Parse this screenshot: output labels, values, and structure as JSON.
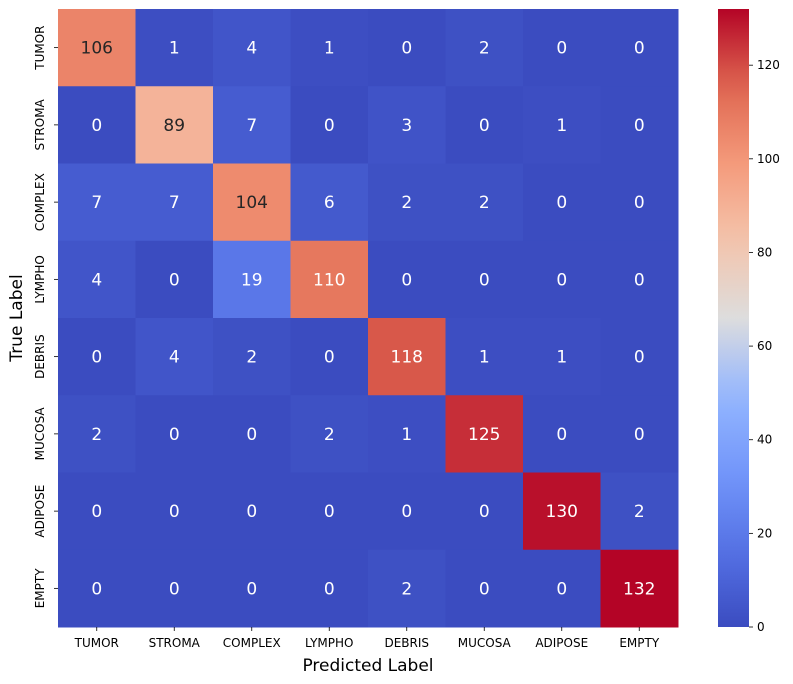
{
  "chart_data": {
    "type": "heatmap",
    "title": "",
    "xlabel": "Predicted Label",
    "ylabel": "True Label",
    "x_categories": [
      "TUMOR",
      "STROMA",
      "COMPLEX",
      "LYMPHO",
      "DEBRIS",
      "MUCOSA",
      "ADIPOSE",
      "EMPTY"
    ],
    "y_categories": [
      "TUMOR",
      "STROMA",
      "COMPLEX",
      "LYMPHO",
      "DEBRIS",
      "MUCOSA",
      "ADIPOSE",
      "EMPTY"
    ],
    "values": [
      [
        106,
        1,
        4,
        1,
        0,
        2,
        0,
        0
      ],
      [
        0,
        89,
        7,
        0,
        3,
        0,
        1,
        0
      ],
      [
        7,
        7,
        104,
        6,
        2,
        2,
        0,
        0
      ],
      [
        4,
        0,
        19,
        110,
        0,
        0,
        0,
        0
      ],
      [
        0,
        4,
        2,
        0,
        118,
        1,
        1,
        0
      ],
      [
        2,
        0,
        0,
        2,
        1,
        125,
        0,
        0
      ],
      [
        0,
        0,
        0,
        0,
        0,
        0,
        130,
        2
      ],
      [
        0,
        0,
        0,
        0,
        2,
        0,
        0,
        132
      ]
    ],
    "colormap": "coolwarm",
    "value_range": [
      0,
      132
    ],
    "colorbar_ticks": [
      0,
      20,
      40,
      60,
      80,
      100,
      120
    ],
    "grid": false
  }
}
